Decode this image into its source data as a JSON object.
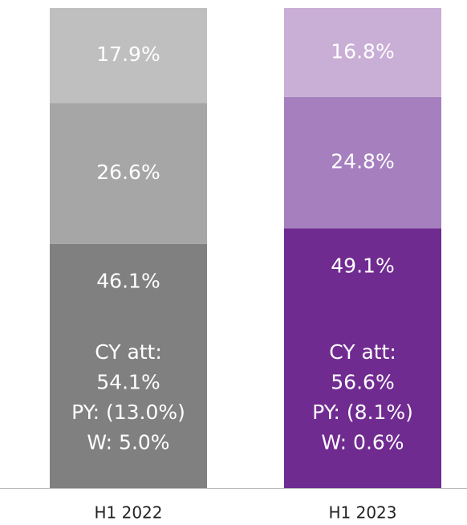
{
  "chart_data": {
    "type": "bar",
    "stacked": "percent",
    "categories": [
      "H1 2022",
      "H1 2023"
    ],
    "series": [
      {
        "colors": [
          "#808080",
          "#702b91"
        ],
        "values": [
          46.1,
          49.1
        ],
        "value_labels": [
          "46.1%",
          "49.1%"
        ]
      },
      {
        "colors": [
          "#a6a6a6",
          "#a67fbf"
        ],
        "values": [
          26.6,
          24.8
        ],
        "value_labels": [
          "26.6%",
          "24.8%"
        ]
      },
      {
        "colors": [
          "#bfbfbf",
          "#c9aed6"
        ],
        "values": [
          17.9,
          16.8
        ],
        "value_labels": [
          "17.9%",
          "16.8%"
        ]
      }
    ],
    "annotations": [
      [
        "CY att:",
        "54.1%",
        "PY: (13.0%)",
        "W: 5.0%"
      ],
      [
        "CY att:",
        "56.6%",
        "PY: (8.1%)",
        "W: 0.6%"
      ]
    ]
  }
}
